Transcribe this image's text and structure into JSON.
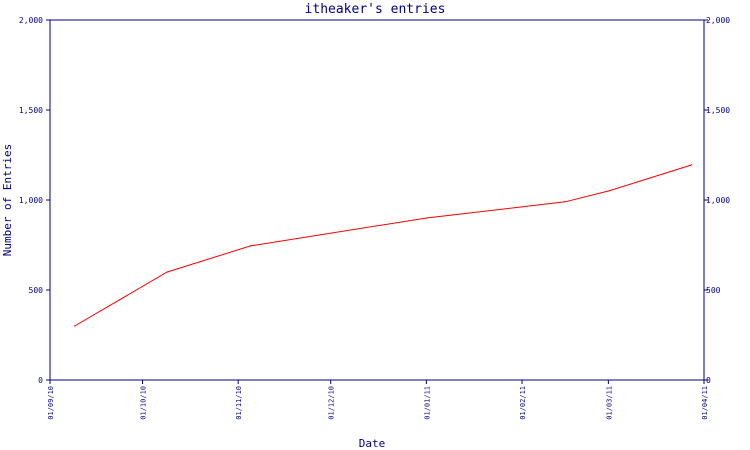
{
  "chart_data": {
    "type": "line",
    "title": "itheaker's entries",
    "xlabel": "Date",
    "ylabel": "Number of Entries",
    "ylim": [
      0,
      2000
    ],
    "xlim": [
      "2010-09-01",
      "2011-04-01"
    ],
    "y_ticks": [
      0,
      500,
      1000,
      1500,
      2000
    ],
    "y_tick_labels": [
      "0",
      "500",
      "1,000",
      "1,500",
      "2,000"
    ],
    "x_ticks": [
      "2010-09-01",
      "2010-10-01",
      "2010-11-01",
      "2010-12-01",
      "2011-01-01",
      "2011-02-01",
      "2011-03-01",
      "2011-04-01"
    ],
    "x_tick_labels": [
      "01/09/10",
      "01/10/10",
      "01/11/10",
      "01/12/10",
      "01/01/11",
      "01/02/11",
      "01/03/11",
      "01/04/11"
    ],
    "right_axis": true,
    "grid": false,
    "series": [
      {
        "color": "#ff0000",
        "points": [
          {
            "x": "2010-09-09",
            "y": 300
          },
          {
            "x": "2010-10-09",
            "y": 600
          },
          {
            "x": "2010-11-05",
            "y": 745
          },
          {
            "x": "2011-01-01",
            "y": 900
          },
          {
            "x": "2011-02-15",
            "y": 990
          },
          {
            "x": "2011-03-01",
            "y": 1050
          },
          {
            "x": "2011-03-28",
            "y": 1195
          }
        ]
      }
    ],
    "colors": {
      "axis": "#000080",
      "text": "#000080",
      "line": "#ff0000"
    }
  }
}
